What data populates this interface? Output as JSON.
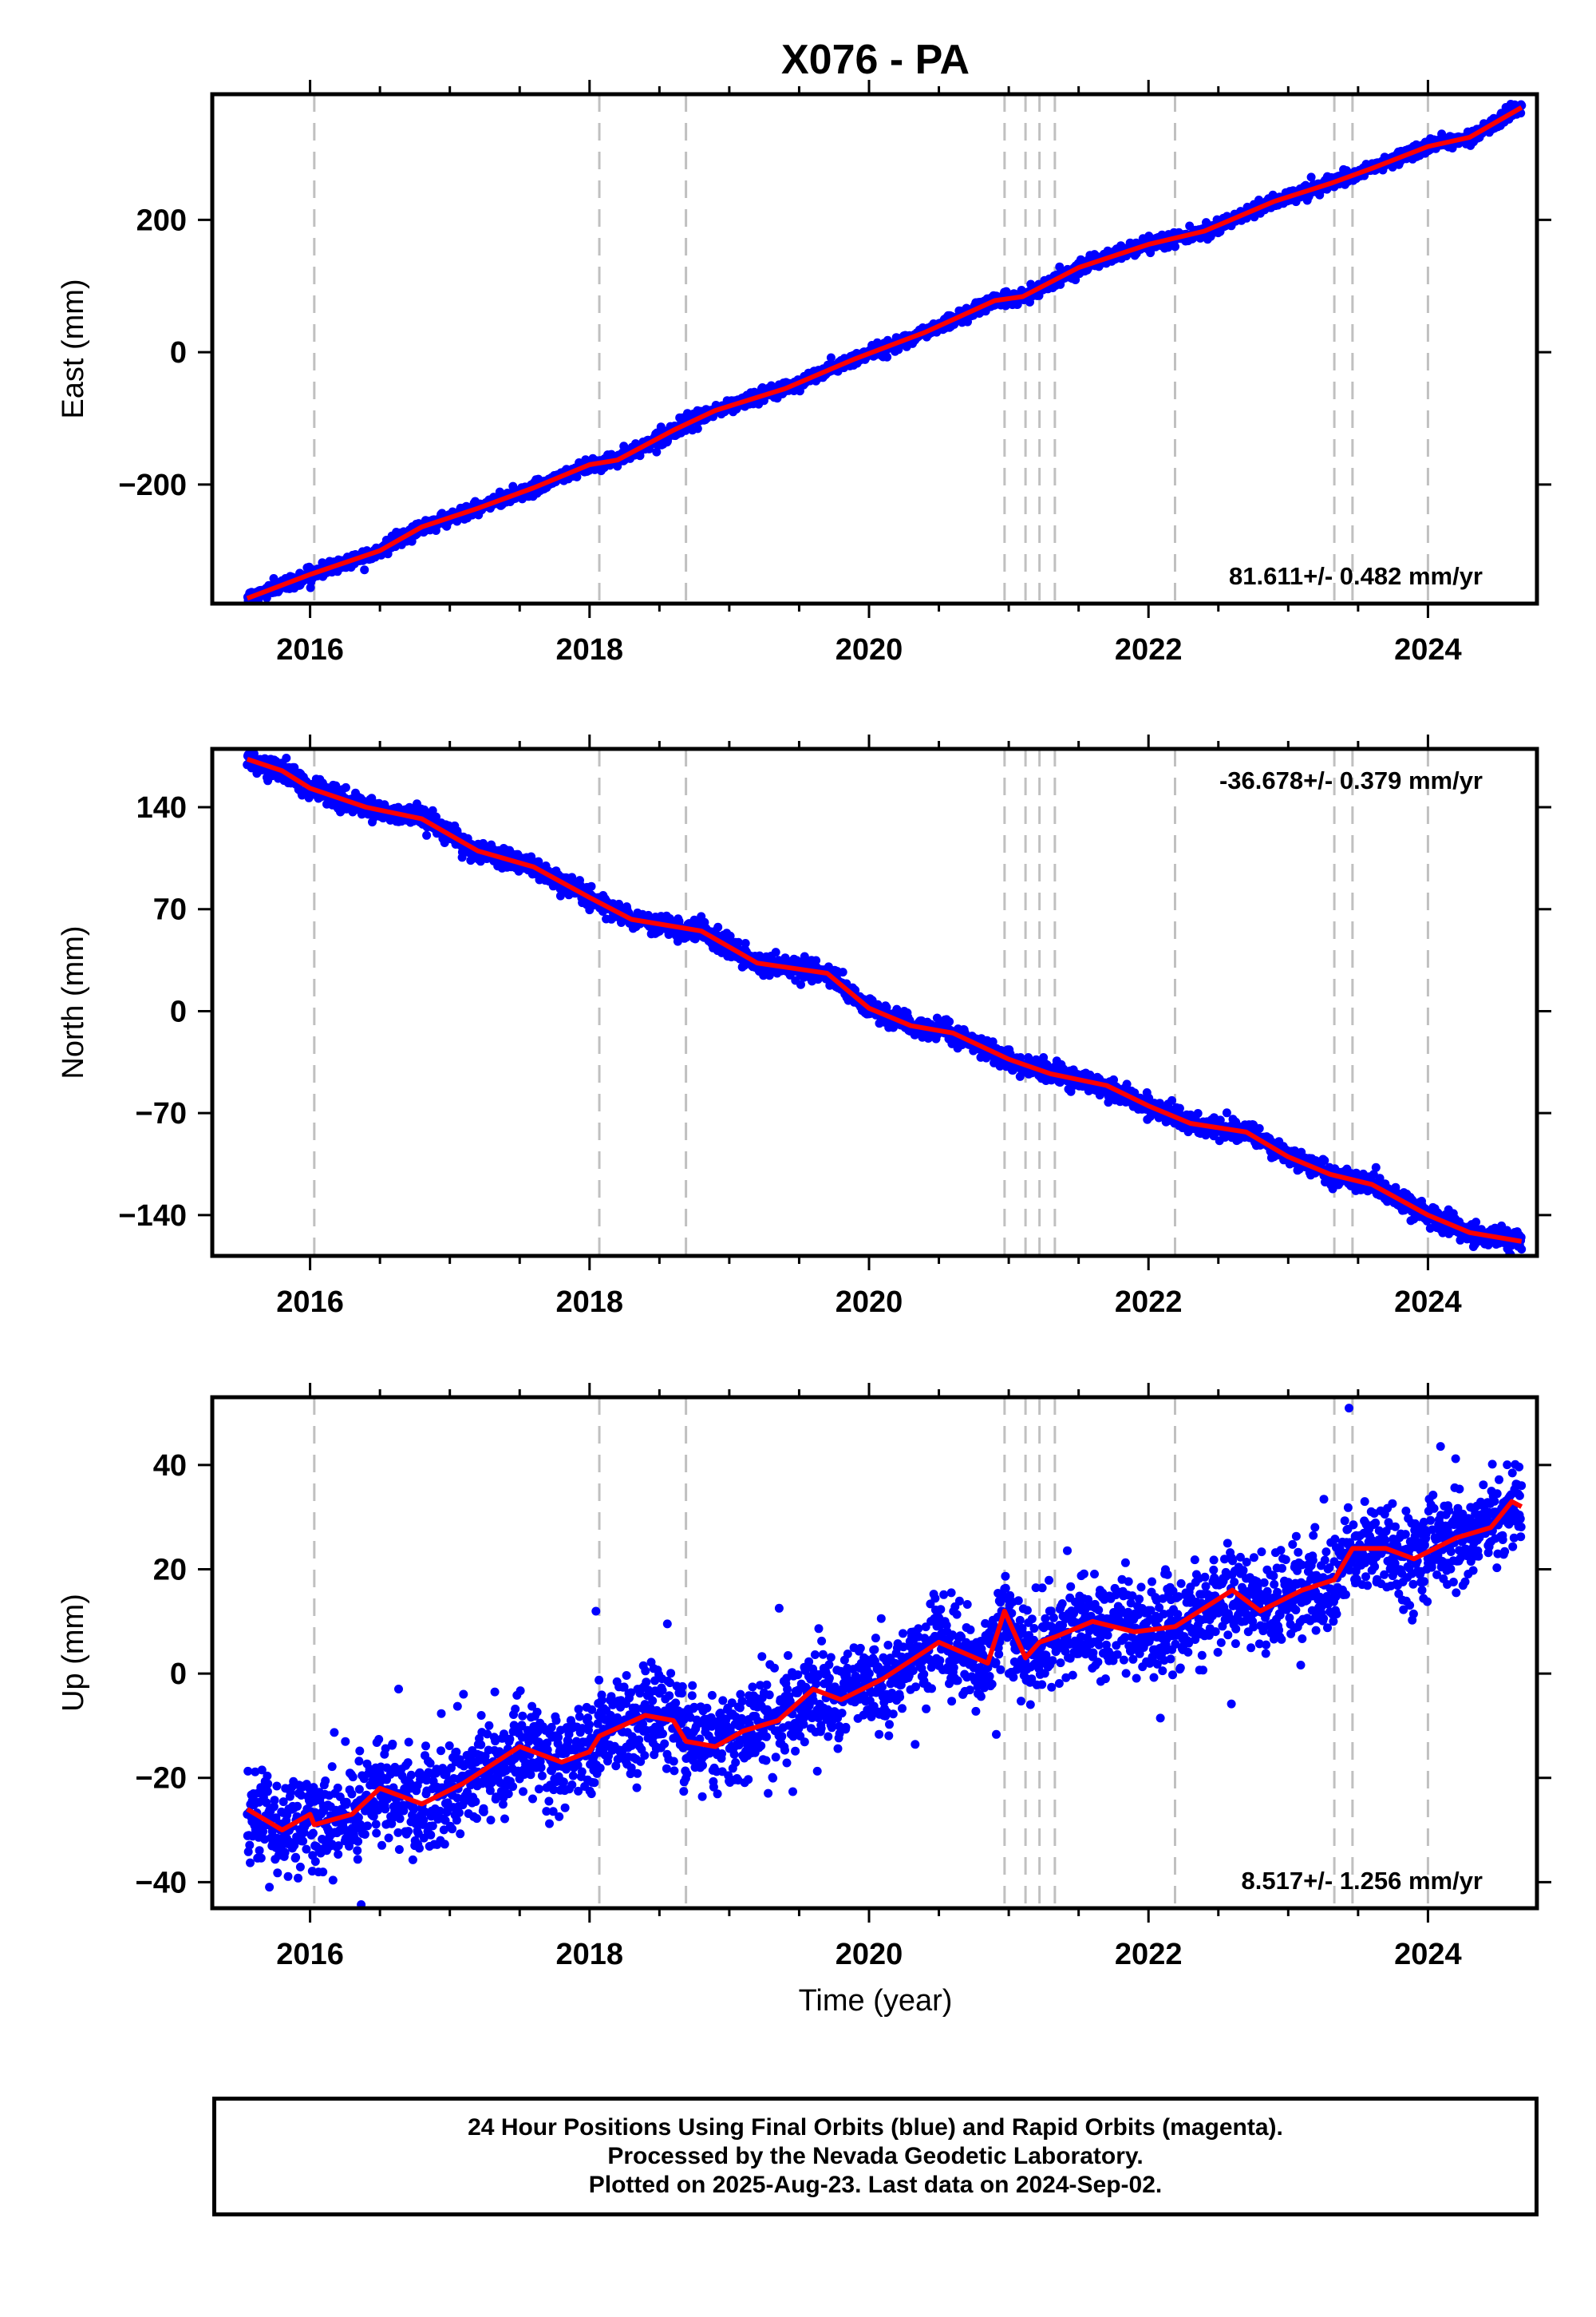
{
  "chart_data": {
    "type": "scatter",
    "title": "X076 - PA",
    "xlabel": "Time (year)",
    "xlim": [
      2015.3,
      2024.78
    ],
    "x_ticks": [
      "2016",
      "2018",
      "2020",
      "2022",
      "2024"
    ],
    "x_tick_values": [
      2016,
      2018,
      2020,
      2022,
      2024
    ],
    "data_start": 2015.55,
    "data_end": 2024.67,
    "event_lines": [
      2016.03,
      2018.07,
      2018.69,
      2020.97,
      2021.12,
      2021.22,
      2021.33,
      2022.19,
      2023.33,
      2023.46,
      2024.0
    ],
    "colors": {
      "points": "#0000ff",
      "fit": "#ff0000",
      "event_lines": "#c0c0c0"
    },
    "panels": [
      {
        "component": "East",
        "ylabel": "East (mm)",
        "ylim": [
          -380,
          390
        ],
        "y_ticks": [
          -200,
          0,
          200
        ],
        "rate_label": "81.611+/- 0.482 mm/yr",
        "rate_position": "bottom-right",
        "fit": {
          "x": [
            2015.55,
            2015.8,
            2016.0,
            2016.5,
            2016.8,
            2017.2,
            2017.6,
            2018.0,
            2018.2,
            2018.6,
            2018.9,
            2019.4,
            2019.9,
            2020.4,
            2020.9,
            2021.1,
            2021.5,
            2022.0,
            2022.4,
            2022.9,
            2023.3,
            2023.6,
            2024.0,
            2024.3,
            2024.67
          ],
          "y": [
            -372,
            -352,
            -336,
            -300,
            -264,
            -236,
            -205,
            -170,
            -163,
            -118,
            -88,
            -55,
            -10,
            30,
            78,
            84,
            128,
            163,
            183,
            228,
            255,
            278,
            311,
            325,
            370
          ]
        },
        "noise": 5
      },
      {
        "component": "North",
        "ylabel": "North (mm)",
        "ylim": [
          -168,
          180
        ],
        "y_ticks": [
          -140,
          -70,
          0,
          70,
          140
        ],
        "rate_label": "-36.678+/- 0.379 mm/yr",
        "rate_position": "top-right",
        "fit": {
          "x": [
            2015.55,
            2015.8,
            2016.0,
            2016.4,
            2016.8,
            2017.2,
            2017.6,
            2018.0,
            2018.3,
            2018.8,
            2019.2,
            2019.7,
            2020.0,
            2020.3,
            2020.6,
            2021.0,
            2021.3,
            2021.7,
            2022.0,
            2022.3,
            2022.7,
            2023.0,
            2023.3,
            2023.6,
            2024.0,
            2024.3,
            2024.67
          ],
          "y": [
            173,
            165,
            153,
            140,
            132,
            110,
            99,
            78,
            63,
            55,
            33,
            26,
            2,
            -10,
            -15,
            -33,
            -43,
            -51,
            -65,
            -77,
            -83,
            -100,
            -112,
            -119,
            -140,
            -152,
            -158
          ]
        },
        "noise": 3.5
      },
      {
        "component": "Up",
        "ylabel": "Up (mm)",
        "ylim": [
          -45,
          53
        ],
        "y_ticks": [
          -40,
          -20,
          0,
          20,
          40
        ],
        "rate_label": "8.517+/- 1.256 mm/yr",
        "rate_position": "bottom-right",
        "fit": {
          "x": [
            2015.55,
            2015.8,
            2016.0,
            2016.03,
            2016.3,
            2016.5,
            2016.8,
            2017.1,
            2017.5,
            2017.8,
            2018.0,
            2018.07,
            2018.4,
            2018.6,
            2018.69,
            2018.9,
            2019.1,
            2019.35,
            2019.6,
            2019.8,
            2020.1,
            2020.5,
            2020.85,
            2020.97,
            2021.12,
            2021.22,
            2021.33,
            2021.6,
            2021.9,
            2022.19,
            2022.6,
            2022.8,
            2023.1,
            2023.33,
            2023.46,
            2023.7,
            2023.9,
            2024.2,
            2024.45,
            2024.6,
            2024.67
          ],
          "y": [
            -26,
            -30,
            -27,
            -29,
            -27,
            -22,
            -25,
            -21,
            -14,
            -17,
            -15,
            -12,
            -8,
            -9,
            -13,
            -14,
            -11,
            -9,
            -3,
            -5,
            -1,
            6,
            2,
            12,
            3,
            6,
            7,
            10,
            8,
            9,
            16,
            12,
            16,
            18,
            24,
            24,
            22,
            26,
            28,
            33,
            32
          ]
        },
        "noise": 4.5
      }
    ],
    "notes": [
      "24 Hour Positions Using Final Orbits (blue) and Rapid Orbits (magenta).",
      "Processed by the Nevada Geodetic Laboratory.",
      "Plotted on 2025-Aug-23. Last data on 2024-Sep-02."
    ]
  }
}
